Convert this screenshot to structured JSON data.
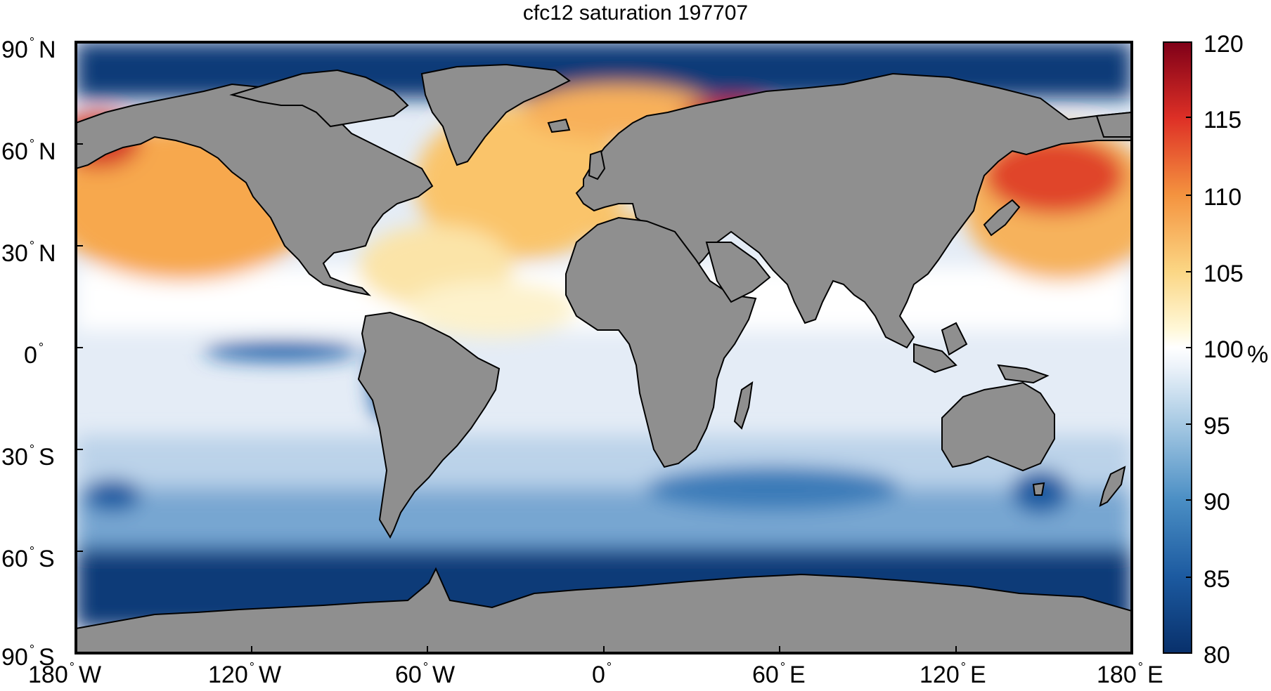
{
  "title": "cfc12 saturation 197707",
  "y_ticks": [
    {
      "num": "90",
      "hemi": "N"
    },
    {
      "num": "60",
      "hemi": "N"
    },
    {
      "num": "30",
      "hemi": "N"
    },
    {
      "num": "0",
      "hemi": ""
    },
    {
      "num": "30",
      "hemi": "S"
    },
    {
      "num": "60",
      "hemi": "S"
    },
    {
      "num": "90",
      "hemi": "S"
    }
  ],
  "x_ticks": [
    {
      "num": "180",
      "hemi": "W"
    },
    {
      "num": "120",
      "hemi": "W"
    },
    {
      "num": "60",
      "hemi": "W"
    },
    {
      "num": "0",
      "hemi": ""
    },
    {
      "num": "60",
      "hemi": "E"
    },
    {
      "num": "120",
      "hemi": "E"
    },
    {
      "num": "180",
      "hemi": "E"
    }
  ],
  "colorbar": {
    "min": 80,
    "max": 120,
    "ticks": [
      "80",
      "85",
      "90",
      "95",
      "100",
      "105",
      "110",
      "115",
      "120"
    ],
    "unit": "%",
    "colormap": "blue-white-red",
    "low_color": "#0b3a78",
    "mid_color": "#ffffff",
    "high_color": "#7a0418"
  },
  "land_color": "#8f8f8f"
}
